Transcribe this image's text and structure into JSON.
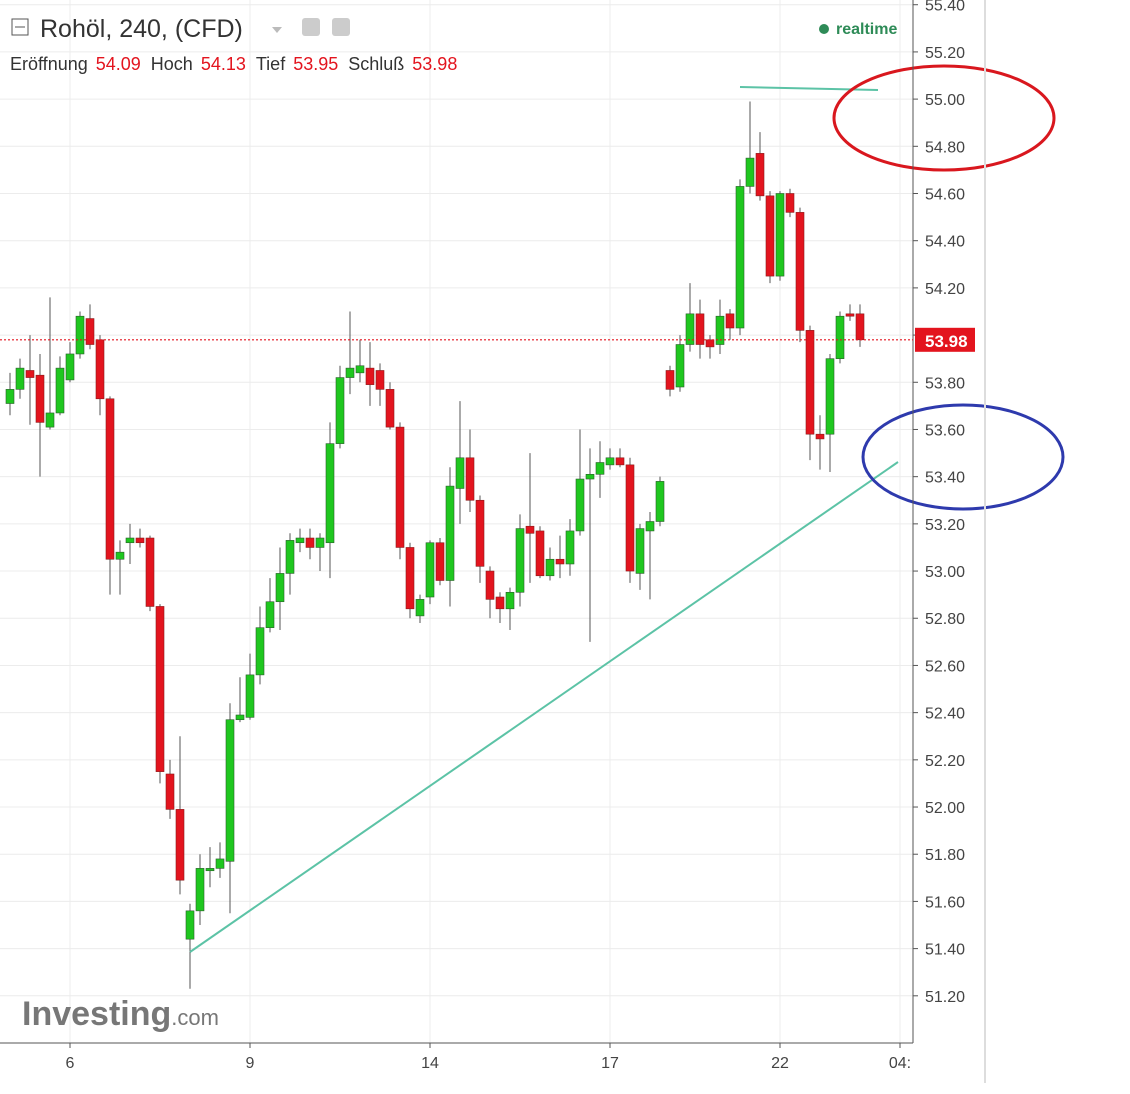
{
  "chart_data": {
    "type": "candlestick",
    "title": "Rohöl, 240, (CFD)",
    "status": "realtime",
    "legend": [
      {
        "label": "Eröffnung",
        "value": 54.09
      },
      {
        "label": "Hoch",
        "value": 54.13
      },
      {
        "label": "Tief",
        "value": 53.95
      },
      {
        "label": "Schluß",
        "value": 53.98
      }
    ],
    "watermark": [
      "Investing",
      ".com"
    ],
    "up_color": "#1fc71f",
    "down_color": "#e3141e",
    "last_price": 53.98,
    "ylim": [
      51.0,
      55.42
    ],
    "yticks": [
      {
        "value": 51.2,
        "label": "51.20"
      },
      {
        "value": 51.4,
        "label": "51.40"
      },
      {
        "value": 51.6,
        "label": "51.60"
      },
      {
        "value": 51.8,
        "label": "51.80"
      },
      {
        "value": 52.0,
        "label": "52.00"
      },
      {
        "value": 52.2,
        "label": "52.20"
      },
      {
        "value": 52.4,
        "label": "52.40"
      },
      {
        "value": 52.6,
        "label": "52.60"
      },
      {
        "value": 52.8,
        "label": "52.80"
      },
      {
        "value": 53.0,
        "label": "53.00"
      },
      {
        "value": 53.2,
        "label": "53.20"
      },
      {
        "value": 53.4,
        "label": "53.40"
      },
      {
        "value": 53.6,
        "label": "53.60"
      },
      {
        "value": 53.8,
        "label": "53.80"
      },
      {
        "value": 54.0,
        "label": "54.00"
      },
      {
        "value": 54.2,
        "label": "54.20"
      },
      {
        "value": 54.4,
        "label": "54.40"
      },
      {
        "value": 54.6,
        "label": "54.60"
      },
      {
        "value": 54.8,
        "label": "54.80"
      },
      {
        "value": 55.0,
        "label": "55.00"
      },
      {
        "value": 55.2,
        "label": "55.20"
      },
      {
        "value": 55.4,
        "label": "55.40"
      }
    ],
    "xticks": [
      {
        "value": 6,
        "label": "6"
      },
      {
        "value": 24,
        "label": "9"
      },
      {
        "value": 42,
        "label": "14"
      },
      {
        "value": 60,
        "label": "17"
      },
      {
        "value": 77,
        "label": "22"
      },
      {
        "value": 89,
        "label": "04:"
      }
    ],
    "grid": true,
    "open": [
      53.71,
      53.77,
      53.85,
      53.83,
      53.61,
      53.67,
      53.81,
      53.92,
      54.07,
      53.98,
      53.73,
      53.05,
      53.12,
      53.14,
      53.14,
      52.85,
      52.14,
      51.99,
      51.44,
      51.56,
      51.73,
      51.74,
      51.77,
      52.37,
      52.38,
      52.56,
      52.76,
      52.87,
      52.99,
      53.12,
      53.14,
      53.1,
      53.12,
      53.54,
      53.82,
      53.84,
      53.86,
      53.85,
      53.77,
      53.61,
      53.1,
      52.81,
      52.89,
      53.12,
      52.96,
      53.35,
      53.48,
      53.3,
      53.0,
      52.89,
      52.84,
      52.91,
      53.19,
      53.17,
      52.98,
      53.05,
      53.03,
      53.17,
      53.39,
      53.41,
      53.45,
      53.48,
      53.45,
      52.99,
      53.17,
      53.21,
      53.85,
      53.78,
      53.96,
      54.09,
      53.98,
      53.96,
      54.09,
      54.03,
      54.63,
      54.77,
      54.59,
      54.25,
      54.6,
      54.52,
      54.02,
      53.58,
      53.58,
      53.9,
      54.09,
      54.09
    ],
    "high": [
      53.84,
      53.9,
      54.0,
      53.92,
      54.16,
      53.91,
      53.97,
      54.1,
      54.13,
      54.0,
      53.74,
      53.13,
      53.2,
      53.18,
      53.15,
      52.86,
      52.2,
      52.3,
      51.59,
      51.8,
      51.83,
      51.85,
      52.44,
      52.55,
      52.65,
      52.85,
      52.97,
      53.1,
      53.16,
      53.18,
      53.18,
      53.16,
      53.63,
      53.87,
      54.1,
      53.98,
      53.97,
      53.88,
      53.8,
      53.63,
      53.12,
      52.9,
      53.13,
      53.14,
      53.44,
      53.72,
      53.6,
      53.32,
      53.02,
      52.91,
      52.93,
      53.24,
      53.5,
      53.19,
      53.1,
      53.15,
      53.22,
      53.6,
      53.52,
      53.55,
      53.52,
      53.52,
      53.48,
      53.2,
      53.25,
      53.4,
      53.87,
      54.0,
      54.22,
      54.15,
      54.0,
      54.15,
      54.11,
      54.66,
      54.99,
      54.86,
      54.61,
      54.61,
      54.62,
      54.54,
      54.04,
      53.66,
      53.92,
      54.1,
      54.13,
      54.13
    ],
    "low": [
      53.66,
      53.73,
      53.62,
      53.4,
      53.6,
      53.66,
      53.8,
      53.9,
      53.94,
      53.66,
      52.9,
      52.9,
      53.03,
      53.1,
      52.83,
      52.1,
      51.95,
      51.63,
      51.23,
      51.5,
      51.66,
      51.7,
      51.55,
      52.36,
      52.37,
      52.52,
      52.74,
      52.75,
      52.9,
      53.08,
      53.05,
      53.0,
      52.97,
      53.52,
      53.75,
      53.8,
      53.7,
      53.7,
      53.6,
      53.05,
      52.8,
      52.78,
      52.86,
      52.94,
      52.85,
      53.2,
      53.25,
      52.95,
      52.8,
      52.78,
      52.75,
      52.85,
      52.95,
      52.97,
      52.96,
      52.97,
      52.98,
      53.15,
      52.7,
      53.31,
      53.43,
      53.44,
      52.95,
      52.92,
      52.88,
      53.19,
      53.74,
      53.76,
      53.93,
      53.9,
      53.9,
      53.92,
      53.98,
      54.0,
      54.6,
      54.57,
      54.22,
      54.23,
      54.5,
      53.97,
      53.47,
      53.43,
      53.42,
      53.88,
      54.06,
      53.95
    ],
    "close": [
      53.77,
      53.86,
      53.82,
      53.63,
      53.67,
      53.86,
      53.92,
      54.08,
      53.96,
      53.73,
      53.05,
      53.08,
      53.14,
      53.12,
      52.85,
      52.15,
      51.99,
      51.69,
      51.56,
      51.74,
      51.74,
      51.78,
      52.37,
      52.39,
      52.56,
      52.76,
      52.87,
      52.99,
      53.13,
      53.14,
      53.1,
      53.14,
      53.54,
      53.82,
      53.86,
      53.87,
      53.79,
      53.77,
      53.61,
      53.1,
      52.84,
      52.88,
      53.12,
      52.96,
      53.36,
      53.48,
      53.3,
      53.02,
      52.88,
      52.84,
      52.91,
      53.18,
      53.16,
      52.98,
      53.05,
      53.03,
      53.17,
      53.39,
      53.41,
      53.46,
      53.48,
      53.45,
      53.0,
      53.18,
      53.21,
      53.38,
      53.77,
      53.96,
      54.09,
      53.96,
      53.95,
      54.08,
      54.03,
      54.63,
      54.75,
      54.59,
      54.25,
      54.6,
      54.52,
      54.02,
      53.58,
      53.56,
      53.9,
      54.08,
      54.08,
      53.98
    ]
  }
}
